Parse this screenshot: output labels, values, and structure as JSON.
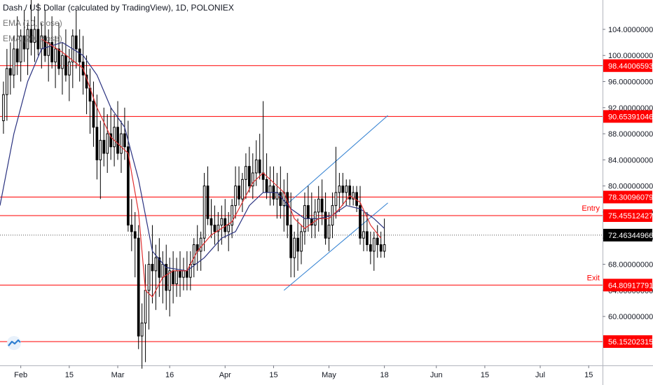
{
  "legend": {
    "title": "Dash / US Dollar (calculated by TradingView), 1D, POLONIEX",
    "ema10": "EMA (10, close)",
    "ema20": "EMA (20, close)"
  },
  "colors": {
    "up": "#000000",
    "down": "#000000",
    "hline": "#ff0000",
    "ema10": "#e03030",
    "ema20": "#2a3280",
    "channel": "#2f7fd1",
    "price_tag": "#000000",
    "level_tag": "#ff0000"
  },
  "chart_data": {
    "type": "candlestick",
    "symbol": "Dash / US Dollar",
    "timeframe": "1D",
    "exchange": "POLONIEX",
    "ylim": [
      52.5,
      108.5
    ],
    "y_ticks": [
      "60.00000000",
      "64.00000000",
      "68.00000000",
      "72.00000000",
      "76.00000000",
      "80.00000000",
      "84.00000000",
      "88.00000000",
      "92.00000000",
      "96.00000000",
      "100.00000000",
      "104.00000000"
    ],
    "y_tick_values": [
      60,
      64,
      68,
      72,
      76,
      80,
      84,
      88,
      92,
      96,
      100,
      104
    ],
    "x_ticks": [
      "Feb",
      "15",
      "Mar",
      "16",
      "Apr",
      "15",
      "May",
      "18",
      "Jun",
      "15",
      "Jul",
      "15"
    ],
    "x_tick_days": [
      2,
      16,
      30,
      45,
      61,
      75,
      91,
      107,
      122,
      136,
      152,
      166
    ],
    "x_range_days": [
      -4,
      170
    ],
    "candles": [
      [
        -3,
        90,
        96,
        88,
        94
      ],
      [
        -2,
        94,
        101,
        90,
        98
      ],
      [
        -1,
        98,
        102,
        94,
        97
      ],
      [
        0,
        97,
        103,
        95,
        101
      ],
      [
        1,
        101,
        106,
        97,
        99
      ],
      [
        2,
        99,
        104,
        96,
        103
      ],
      [
        3,
        103,
        107,
        99,
        101
      ],
      [
        4,
        101,
        105,
        97,
        104
      ],
      [
        5,
        104,
        109,
        100,
        102
      ],
      [
        6,
        102,
        106,
        99,
        104
      ],
      [
        7,
        104,
        108,
        100,
        101
      ],
      [
        8,
        101,
        105,
        98,
        103
      ],
      [
        9,
        103,
        107,
        99,
        100
      ],
      [
        10,
        100,
        104,
        96,
        102
      ],
      [
        11,
        102,
        106,
        98,
        99
      ],
      [
        12,
        99,
        103,
        95,
        101
      ],
      [
        13,
        101,
        105,
        97,
        98
      ],
      [
        14,
        98,
        102,
        94,
        100
      ],
      [
        15,
        100,
        104,
        96,
        97
      ],
      [
        16,
        97,
        101,
        93,
        99
      ],
      [
        17,
        99,
        104,
        95,
        103
      ],
      [
        18,
        103,
        107,
        98,
        101
      ],
      [
        19,
        101,
        104,
        96,
        99
      ],
      [
        20,
        99,
        103,
        94,
        97
      ],
      [
        21,
        97,
        100,
        91,
        95
      ],
      [
        22,
        95,
        98,
        88,
        93
      ],
      [
        23,
        93,
        96,
        86,
        89
      ],
      [
        24,
        89,
        94,
        81,
        84
      ],
      [
        25,
        84,
        90,
        78,
        87
      ],
      [
        26,
        87,
        92,
        83,
        85
      ],
      [
        27,
        85,
        91,
        82,
        88
      ],
      [
        28,
        88,
        92,
        84,
        86
      ],
      [
        29,
        86,
        91,
        83,
        89
      ],
      [
        30,
        89,
        93,
        84,
        85
      ],
      [
        31,
        85,
        90,
        82,
        88
      ],
      [
        32,
        88,
        92,
        84,
        86
      ],
      [
        33,
        86,
        90,
        73,
        74
      ],
      [
        34,
        74,
        78,
        70,
        73
      ],
      [
        35,
        73,
        76,
        66,
        72
      ],
      [
        36,
        72,
        74,
        55,
        57
      ],
      [
        37,
        57,
        62,
        52,
        59
      ],
      [
        38,
        59,
        68,
        53,
        64
      ],
      [
        39,
        64,
        70,
        58,
        68
      ],
      [
        40,
        68,
        74,
        62,
        67
      ],
      [
        41,
        67,
        71,
        61,
        69
      ],
      [
        42,
        69,
        72,
        63,
        66
      ],
      [
        43,
        66,
        70,
        62,
        68
      ],
      [
        44,
        68,
        71,
        61,
        64
      ],
      [
        45,
        64,
        69,
        60,
        67
      ],
      [
        46,
        67,
        70,
        62,
        65
      ],
      [
        47,
        65,
        69,
        63,
        67
      ],
      [
        48,
        67,
        70,
        63,
        66
      ],
      [
        49,
        66,
        69,
        64,
        67
      ],
      [
        50,
        67,
        70,
        64,
        66
      ],
      [
        51,
        66,
        70,
        64,
        68
      ],
      [
        52,
        68,
        72,
        66,
        71
      ],
      [
        53,
        71,
        74,
        67,
        70
      ],
      [
        54,
        70,
        73,
        67,
        72
      ],
      [
        55,
        72,
        82,
        70,
        80
      ],
      [
        56,
        80,
        83,
        74,
        75
      ],
      [
        57,
        75,
        78,
        72,
        74
      ],
      [
        58,
        74,
        77,
        71,
        73
      ],
      [
        59,
        73,
        76,
        70,
        74
      ],
      [
        60,
        74,
        77,
        71,
        75
      ],
      [
        61,
        75,
        78,
        72,
        73
      ],
      [
        62,
        73,
        76,
        70,
        74
      ],
      [
        63,
        74,
        78,
        72,
        77
      ],
      [
        64,
        77,
        83,
        75,
        80
      ],
      [
        65,
        80,
        83,
        77,
        78
      ],
      [
        66,
        78,
        82,
        76,
        81
      ],
      [
        67,
        81,
        85,
        78,
        83
      ],
      [
        68,
        83,
        86,
        79,
        80
      ],
      [
        69,
        80,
        85,
        78,
        82
      ],
      [
        70,
        82,
        87,
        80,
        84
      ],
      [
        71,
        84,
        88,
        81,
        82
      ],
      [
        72,
        82,
        93,
        79,
        81
      ],
      [
        73,
        81,
        85,
        78,
        79
      ],
      [
        74,
        79,
        83,
        77,
        80
      ],
      [
        75,
        80,
        83,
        77,
        78
      ],
      [
        76,
        78,
        82,
        75,
        79
      ],
      [
        77,
        79,
        83,
        75,
        77
      ],
      [
        78,
        77,
        81,
        73,
        79
      ],
      [
        79,
        79,
        82,
        72,
        74
      ],
      [
        80,
        74,
        79,
        66,
        69
      ],
      [
        81,
        69,
        73,
        66,
        72
      ],
      [
        82,
        72,
        75,
        67,
        70
      ],
      [
        83,
        70,
        74,
        68,
        73
      ],
      [
        84,
        73,
        79,
        71,
        77
      ],
      [
        85,
        77,
        80,
        73,
        75
      ],
      [
        86,
        75,
        79,
        72,
        74
      ],
      [
        87,
        74,
        78,
        72,
        76
      ],
      [
        88,
        76,
        80,
        73,
        78
      ],
      [
        89,
        78,
        81,
        74,
        76
      ],
      [
        90,
        76,
        79,
        71,
        72
      ],
      [
        91,
        72,
        76,
        70,
        74
      ],
      [
        92,
        74,
        79,
        72,
        77
      ],
      [
        93,
        77,
        86,
        75,
        79
      ],
      [
        94,
        79,
        82,
        76,
        80
      ],
      [
        95,
        80,
        82,
        77,
        79
      ],
      [
        96,
        79,
        81,
        77,
        80
      ],
      [
        97,
        80,
        81,
        77,
        78
      ],
      [
        98,
        78,
        80,
        77,
        79
      ],
      [
        99,
        79,
        80,
        76,
        77
      ],
      [
        100,
        77,
        80,
        71,
        72
      ],
      [
        101,
        72,
        76,
        70,
        73
      ],
      [
        102,
        73,
        76,
        70,
        71
      ],
      [
        103,
        71,
        73,
        68,
        70
      ],
      [
        104,
        70,
        73,
        67,
        72
      ],
      [
        105,
        72,
        74,
        69,
        71
      ],
      [
        106,
        71,
        73,
        69,
        70
      ],
      [
        107,
        70,
        75,
        69,
        71
      ]
    ],
    "ema10": [
      [
        8,
        102.5
      ],
      [
        14,
        100.5
      ],
      [
        20,
        98
      ],
      [
        24,
        92
      ],
      [
        28,
        87.5
      ],
      [
        33,
        85
      ],
      [
        36,
        76
      ],
      [
        38,
        64
      ],
      [
        40,
        63
      ],
      [
        43,
        66
      ],
      [
        46,
        67
      ],
      [
        50,
        67
      ],
      [
        53,
        70
      ],
      [
        57,
        72.5
      ],
      [
        60,
        73.5
      ],
      [
        63,
        74.5
      ],
      [
        66,
        77.5
      ],
      [
        69,
        80.5
      ],
      [
        72,
        82
      ],
      [
        75,
        80.5
      ],
      [
        78,
        79
      ],
      [
        81,
        75
      ],
      [
        84,
        73.5
      ],
      [
        88,
        75
      ],
      [
        91,
        75
      ],
      [
        94,
        76.5
      ],
      [
        97,
        78.5
      ],
      [
        100,
        77.5
      ],
      [
        103,
        74
      ],
      [
        106,
        72
      ]
    ],
    "ema20": [
      [
        -4,
        77
      ],
      [
        0,
        88
      ],
      [
        4,
        96
      ],
      [
        8,
        101
      ],
      [
        14,
        102
      ],
      [
        20,
        100
      ],
      [
        24,
        97
      ],
      [
        28,
        92
      ],
      [
        32,
        89
      ],
      [
        36,
        81
      ],
      [
        40,
        70
      ],
      [
        44,
        67.5
      ],
      [
        50,
        67
      ],
      [
        55,
        69
      ],
      [
        60,
        72
      ],
      [
        64,
        73
      ],
      [
        68,
        77
      ],
      [
        72,
        79
      ],
      [
        76,
        79
      ],
      [
        80,
        76.5
      ],
      [
        84,
        75
      ],
      [
        88,
        75
      ],
      [
        92,
        75.5
      ],
      [
        96,
        77
      ],
      [
        100,
        76.5
      ],
      [
        104,
        75
      ],
      [
        107,
        73.5
      ]
    ],
    "horizontal_levels": [
      {
        "value": 98.44006593,
        "label": "98.44006593"
      },
      {
        "value": 90.65391046,
        "label": "90.65391046"
      },
      {
        "value": 78.30096079,
        "label": "78.30096079"
      },
      {
        "value": 75.45512427,
        "label": "75.45512427",
        "note": "Entry"
      },
      {
        "value": 64.80917791,
        "label": "64.80917791",
        "note": "Exit"
      },
      {
        "value": 56.15202315,
        "label": "56.15202315"
      }
    ],
    "current_price": {
      "value": 72.46344966,
      "label": "72.46344966"
    },
    "channel": {
      "upper": [
        [
          78,
          76.8
        ],
        [
          108,
          90.8
        ]
      ],
      "lower": [
        [
          78,
          64.0
        ],
        [
          108,
          77.4
        ]
      ]
    }
  }
}
